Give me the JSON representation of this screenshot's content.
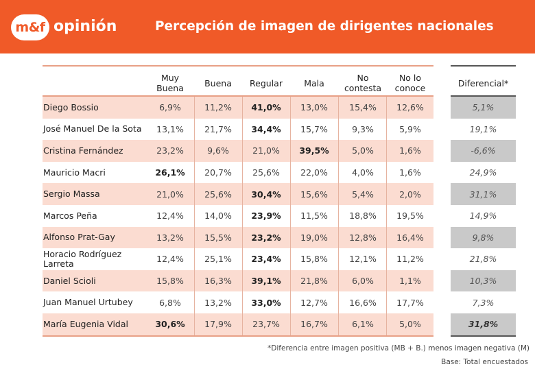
{
  "header": {
    "logo_mark": "m&f",
    "logo_word": "opinión",
    "title": "Percepción de imagen de dirigentes nacionales"
  },
  "chart_data": {
    "type": "table",
    "title": "Percepción de imagen de dirigentes nacionales",
    "columns": [
      "Muy Buena",
      "Buena",
      "Regular",
      "Mala",
      "No contesta",
      "No lo conoce"
    ],
    "diff_column": "Diferencial*",
    "rows": [
      {
        "name": "Diego Bossio",
        "values": [
          "6,9%",
          "11,2%",
          "41,0%",
          "13,0%",
          "15,4%",
          "12,6%"
        ],
        "bold": [
          2
        ],
        "diff": "5,1%"
      },
      {
        "name": "José Manuel De la Sota",
        "values": [
          "13,1%",
          "21,7%",
          "34,4%",
          "15,7%",
          "9,3%",
          "5,9%"
        ],
        "bold": [
          2
        ],
        "diff": "19,1%"
      },
      {
        "name": "Cristina Fernández",
        "values": [
          "23,2%",
          "9,6%",
          "21,0%",
          "39,5%",
          "5,0%",
          "1,6%"
        ],
        "bold": [
          3
        ],
        "diff": "-6,6%"
      },
      {
        "name": "Mauricio Macri",
        "values": [
          "26,1%",
          "20,7%",
          "25,6%",
          "22,0%",
          "4,0%",
          "1,6%"
        ],
        "bold": [
          0
        ],
        "diff": "24,9%"
      },
      {
        "name": "Sergio Massa",
        "values": [
          "21,0%",
          "25,6%",
          "30,4%",
          "15,6%",
          "5,4%",
          "2,0%"
        ],
        "bold": [
          2
        ],
        "diff": "31,1%"
      },
      {
        "name": "Marcos Peña",
        "values": [
          "12,4%",
          "14,0%",
          "23,9%",
          "11,5%",
          "18,8%",
          "19,5%"
        ],
        "bold": [
          2
        ],
        "diff": "14,9%"
      },
      {
        "name": "Alfonso Prat-Gay",
        "values": [
          "13,2%",
          "15,5%",
          "23,2%",
          "19,0%",
          "12,8%",
          "16,4%"
        ],
        "bold": [
          2
        ],
        "diff": "9,8%"
      },
      {
        "name": "Horacio Rodríguez Larreta",
        "values": [
          "12,4%",
          "25,1%",
          "23,4%",
          "15,8%",
          "12,1%",
          "11,2%"
        ],
        "bold": [
          2
        ],
        "diff": "21,8%"
      },
      {
        "name": "Daniel Scioli",
        "values": [
          "15,8%",
          "16,3%",
          "39,1%",
          "21,8%",
          "6,0%",
          "1,1%"
        ],
        "bold": [
          2
        ],
        "diff": "10,3%"
      },
      {
        "name": "Juan Manuel Urtubey",
        "values": [
          "6,8%",
          "13,2%",
          "33,0%",
          "12,7%",
          "16,6%",
          "17,7%"
        ],
        "bold": [
          2
        ],
        "diff": "7,3%"
      },
      {
        "name": "María Eugenia Vidal",
        "values": [
          "30,6%",
          "17,9%",
          "23,7%",
          "16,7%",
          "6,1%",
          "5,0%"
        ],
        "bold": [
          0
        ],
        "diff": "31,8%",
        "diff_bold": true
      }
    ]
  },
  "footnote": "*Diferencia entre imagen positiva (MB + B.) menos imagen negativa (M)",
  "base": "Base: Total encuestados"
}
